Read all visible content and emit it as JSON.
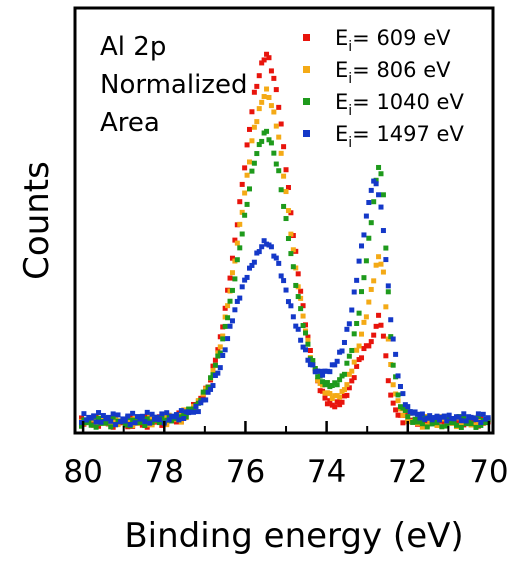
{
  "chart_data": {
    "type": "scatter",
    "xlabel": "Binding energy (eV)",
    "ylabel": "Counts",
    "xlim": [
      80.2,
      69.9
    ],
    "x_reversed": true,
    "ylim": [
      0,
      1.0
    ],
    "y_ticks_shown": false,
    "x_ticks": [
      80,
      78,
      76,
      74,
      72,
      70
    ],
    "x_tick_labels": [
      "80",
      "78",
      "76",
      "74",
      "72",
      "70"
    ],
    "grid": false,
    "legend_position": "top-right",
    "annotation": [
      "Al 2p",
      "Normalized",
      "Area"
    ],
    "series": [
      {
        "name": "609 eV",
        "legend_prefix": "E",
        "legend_sub": "i",
        "legend_eq": "= ",
        "color": "#e8140c",
        "points": [
          [
            80.1,
            0.01
          ],
          [
            79.5,
            0.01
          ],
          [
            79.0,
            0.01
          ],
          [
            78.5,
            0.01
          ],
          [
            78.0,
            0.015
          ],
          [
            77.6,
            0.02
          ],
          [
            77.2,
            0.05
          ],
          [
            76.9,
            0.1
          ],
          [
            76.6,
            0.22
          ],
          [
            76.3,
            0.42
          ],
          [
            76.0,
            0.65
          ],
          [
            75.8,
            0.8
          ],
          [
            75.6,
            0.88
          ],
          [
            75.5,
            0.91
          ],
          [
            75.4,
            0.89
          ],
          [
            75.2,
            0.8
          ],
          [
            75.0,
            0.63
          ],
          [
            74.8,
            0.45
          ],
          [
            74.6,
            0.3
          ],
          [
            74.4,
            0.18
          ],
          [
            74.2,
            0.1
          ],
          [
            74.0,
            0.06
          ],
          [
            73.8,
            0.05
          ],
          [
            73.6,
            0.06
          ],
          [
            73.4,
            0.1
          ],
          [
            73.2,
            0.16
          ],
          [
            73.0,
            0.2
          ],
          [
            72.9,
            0.2
          ],
          [
            72.8,
            0.24
          ],
          [
            72.7,
            0.27
          ],
          [
            72.6,
            0.22
          ],
          [
            72.5,
            0.13
          ],
          [
            72.4,
            0.06
          ],
          [
            72.2,
            0.02
          ],
          [
            71.8,
            0.01
          ],
          [
            71.0,
            0.01
          ],
          [
            70.0,
            0.01
          ]
        ]
      },
      {
        "name": "806 eV",
        "legend_prefix": "E",
        "legend_sub": "i",
        "legend_eq": "= ",
        "color": "#f4aa16",
        "points": [
          [
            80.1,
            0.01
          ],
          [
            79.5,
            0.01
          ],
          [
            79.0,
            0.01
          ],
          [
            78.5,
            0.01
          ],
          [
            78.0,
            0.015
          ],
          [
            77.6,
            0.02
          ],
          [
            77.2,
            0.05
          ],
          [
            76.9,
            0.1
          ],
          [
            76.6,
            0.2
          ],
          [
            76.3,
            0.38
          ],
          [
            76.0,
            0.58
          ],
          [
            75.8,
            0.72
          ],
          [
            75.6,
            0.79
          ],
          [
            75.5,
            0.82
          ],
          [
            75.4,
            0.8
          ],
          [
            75.2,
            0.72
          ],
          [
            75.0,
            0.57
          ],
          [
            74.8,
            0.41
          ],
          [
            74.6,
            0.28
          ],
          [
            74.4,
            0.17
          ],
          [
            74.2,
            0.11
          ],
          [
            74.0,
            0.08
          ],
          [
            73.8,
            0.07
          ],
          [
            73.6,
            0.08
          ],
          [
            73.4,
            0.13
          ],
          [
            73.2,
            0.2
          ],
          [
            73.0,
            0.28
          ],
          [
            72.9,
            0.33
          ],
          [
            72.8,
            0.38
          ],
          [
            72.7,
            0.42
          ],
          [
            72.6,
            0.37
          ],
          [
            72.5,
            0.24
          ],
          [
            72.4,
            0.12
          ],
          [
            72.2,
            0.04
          ],
          [
            71.8,
            0.01
          ],
          [
            71.0,
            0.01
          ],
          [
            70.0,
            0.01
          ]
        ]
      },
      {
        "name": "1040 eV",
        "legend_prefix": "E",
        "legend_sub": "i",
        "legend_eq": "= ",
        "color": "#1e9a1c",
        "points": [
          [
            80.1,
            0.01
          ],
          [
            79.5,
            0.01
          ],
          [
            79.0,
            0.01
          ],
          [
            78.5,
            0.01
          ],
          [
            78.0,
            0.015
          ],
          [
            77.6,
            0.02
          ],
          [
            77.2,
            0.05
          ],
          [
            76.9,
            0.1
          ],
          [
            76.6,
            0.19
          ],
          [
            76.3,
            0.34
          ],
          [
            76.0,
            0.52
          ],
          [
            75.8,
            0.64
          ],
          [
            75.6,
            0.7
          ],
          [
            75.5,
            0.72
          ],
          [
            75.4,
            0.7
          ],
          [
            75.2,
            0.63
          ],
          [
            75.0,
            0.5
          ],
          [
            74.8,
            0.37
          ],
          [
            74.6,
            0.26
          ],
          [
            74.4,
            0.17
          ],
          [
            74.2,
            0.12
          ],
          [
            74.0,
            0.1
          ],
          [
            73.8,
            0.1
          ],
          [
            73.6,
            0.12
          ],
          [
            73.4,
            0.18
          ],
          [
            73.2,
            0.28
          ],
          [
            73.0,
            0.42
          ],
          [
            72.9,
            0.5
          ],
          [
            72.8,
            0.58
          ],
          [
            72.7,
            0.65
          ],
          [
            72.6,
            0.56
          ],
          [
            72.5,
            0.36
          ],
          [
            72.4,
            0.18
          ],
          [
            72.2,
            0.05
          ],
          [
            71.8,
            0.01
          ],
          [
            71.0,
            0.01
          ],
          [
            70.0,
            0.01
          ]
        ]
      },
      {
        "name": "1497 eV",
        "legend_prefix": "E",
        "legend_sub": "i",
        "legend_eq": "= ",
        "color": "#1438c8",
        "points": [
          [
            80.1,
            0.02
          ],
          [
            79.5,
            0.02
          ],
          [
            79.0,
            0.015
          ],
          [
            78.5,
            0.02
          ],
          [
            78.0,
            0.02
          ],
          [
            77.6,
            0.025
          ],
          [
            77.2,
            0.04
          ],
          [
            76.9,
            0.08
          ],
          [
            76.6,
            0.15
          ],
          [
            76.3,
            0.27
          ],
          [
            76.0,
            0.36
          ],
          [
            75.8,
            0.4
          ],
          [
            75.6,
            0.44
          ],
          [
            75.5,
            0.45
          ],
          [
            75.4,
            0.44
          ],
          [
            75.2,
            0.4
          ],
          [
            75.0,
            0.33
          ],
          [
            74.8,
            0.26
          ],
          [
            74.6,
            0.2
          ],
          [
            74.4,
            0.15
          ],
          [
            74.2,
            0.13
          ],
          [
            74.0,
            0.13
          ],
          [
            73.8,
            0.15
          ],
          [
            73.6,
            0.19
          ],
          [
            73.4,
            0.27
          ],
          [
            73.2,
            0.4
          ],
          [
            73.0,
            0.52
          ],
          [
            72.9,
            0.58
          ],
          [
            72.8,
            0.6
          ],
          [
            72.7,
            0.56
          ],
          [
            72.6,
            0.48
          ],
          [
            72.5,
            0.36
          ],
          [
            72.4,
            0.24
          ],
          [
            72.2,
            0.1
          ],
          [
            72.0,
            0.04
          ],
          [
            71.6,
            0.02
          ],
          [
            71.0,
            0.02
          ],
          [
            70.0,
            0.02
          ]
        ]
      }
    ]
  }
}
